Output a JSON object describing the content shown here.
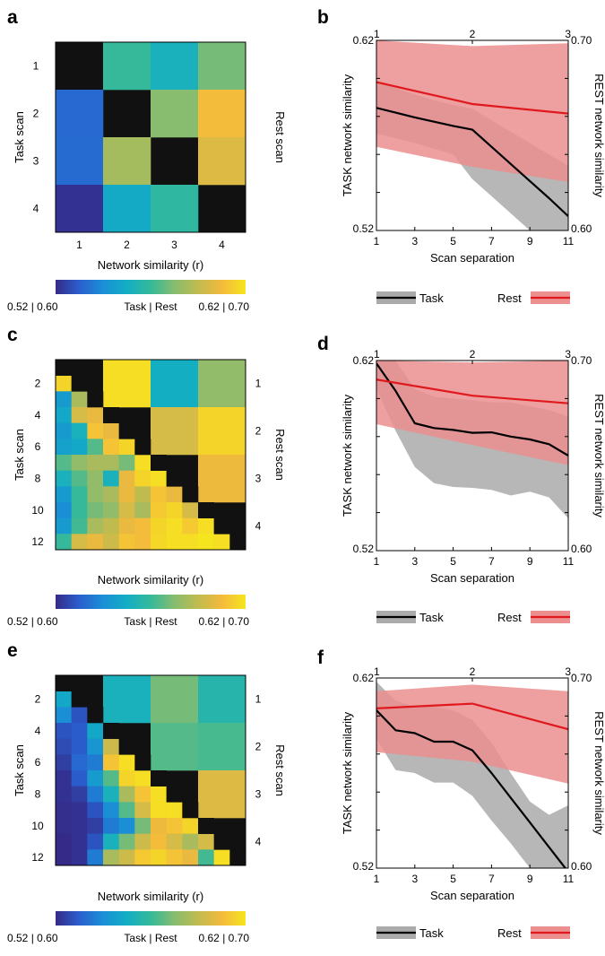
{
  "colors": {
    "task_line": "#000000",
    "task_band": "#a9aaa9",
    "rest_line": "#e0191f",
    "rest_band": "#eb8f8f",
    "diagonal": "#111111",
    "colormap": [
      "#352a87",
      "#2a5fce",
      "#1a8fd6",
      "#13aec4",
      "#35b99a",
      "#86bc6f",
      "#c0bb4f",
      "#f4ba3c",
      "#f5e51e"
    ]
  },
  "chart_data": [
    {
      "panel": "a",
      "type": "heatmap",
      "ylabel_left": "Task scan",
      "ylabel_right": "Rest scan",
      "xlabel": "Network similarity (r)",
      "x_ticks": [
        "1",
        "2",
        "3",
        "4"
      ],
      "y_ticks_left": [
        "1",
        "2",
        "3",
        "4"
      ],
      "task_scans": 4,
      "rest_scans": 4,
      "task_range": [
        0.52,
        0.62
      ],
      "rest_range": [
        0.6,
        0.7
      ],
      "matrix": [
        [
          null,
          0.65,
          0.64,
          0.66
        ],
        [
          0.535,
          null,
          0.663,
          0.688
        ],
        [
          0.536,
          0.589,
          null,
          0.682
        ],
        [
          0.522,
          0.556,
          0.568,
          null
        ]
      ],
      "colorbar": {
        "left": "0.52 | 0.60",
        "mid": "Task | Rest",
        "right": "0.62 | 0.70"
      }
    },
    {
      "panel": "b",
      "type": "line",
      "xlabel": "Scan separation",
      "ylabel_left": "TASK network similarity",
      "ylabel_right": "REST network similarity",
      "x_ticks": [
        "1",
        "3",
        "5",
        "7",
        "9",
        "11"
      ],
      "top_ticks": [
        "1",
        "2",
        "3"
      ],
      "ylim_left": [
        0.52,
        0.62
      ],
      "ylim_right": [
        0.6,
        0.7
      ],
      "y_tick_labels_left": [
        "0.52",
        "0.62"
      ],
      "y_tick_labels_right": [
        "0.60",
        "0.70"
      ],
      "series": [
        {
          "name": "Task",
          "axis": "bottom-left",
          "x": [
            1,
            2,
            3,
            4,
            5,
            6,
            7,
            8,
            9,
            10,
            11
          ],
          "values": [
            0.5845,
            0.582,
            0.5795,
            0.5772,
            0.575,
            0.573,
            0.564,
            0.555,
            0.546,
            0.537,
            0.5275
          ],
          "lower": [
            0.571,
            0.5685,
            0.566,
            0.563,
            0.56,
            0.547,
            0.538,
            0.529,
            0.52,
            0.518,
            0.518
          ],
          "upper": [
            0.5975,
            0.595,
            0.5915,
            0.5885,
            0.586,
            0.584,
            0.578,
            0.572,
            0.566,
            0.56,
            0.554
          ]
        },
        {
          "name": "Rest",
          "axis": "top-right",
          "x": [
            1,
            2,
            3
          ],
          "values": [
            0.678,
            0.6665,
            0.6615
          ],
          "lower": [
            0.644,
            0.6335,
            0.6255
          ],
          "upper": [
            0.7,
            0.697,
            0.6985
          ]
        }
      ],
      "legend": [
        "Task",
        "Rest"
      ]
    },
    {
      "panel": "c",
      "type": "heatmap",
      "ylabel_left": "Task scan",
      "ylabel_right": "Rest scan",
      "xlabel": "Network similarity (r)",
      "y_ticks_left": [
        "2",
        "4",
        "6",
        "8",
        "10",
        "12"
      ],
      "y_ticks_right": [
        "1",
        "2",
        "3",
        "4"
      ],
      "task_scans": 12,
      "rest_scans": 4,
      "task_range": [
        0.52,
        0.62
      ],
      "rest_range": [
        0.6,
        0.7
      ],
      "task_lower": [
        [
          0.615
        ],
        [
          0.55,
          0.59
        ],
        [
          0.555,
          0.6,
          0.605
        ],
        [
          0.55,
          0.56,
          0.61,
          0.605
        ],
        [
          0.552,
          0.555,
          0.575,
          0.61,
          0.615
        ],
        [
          0.575,
          0.585,
          0.59,
          0.59,
          0.58,
          0.618
        ],
        [
          0.56,
          0.575,
          0.585,
          0.56,
          0.605,
          0.615,
          0.618
        ],
        [
          0.55,
          0.57,
          0.585,
          0.59,
          0.605,
          0.595,
          0.61,
          0.605
        ],
        [
          0.545,
          0.57,
          0.58,
          0.585,
          0.6,
          0.59,
          0.612,
          0.615,
          0.6
        ],
        [
          0.55,
          0.572,
          0.59,
          0.595,
          0.605,
          0.608,
          0.615,
          0.618,
          0.612,
          0.618
        ],
        [
          0.57,
          0.6,
          0.605,
          0.598,
          0.61,
          0.608,
          0.616,
          0.618,
          0.618,
          0.62,
          0.618
        ]
      ],
      "rest_upper": [
        [
          0.698,
          0.638,
          0.665
        ],
        [
          0.68,
          0.695
        ],
        [
          0.686
        ]
      ],
      "colorbar": {
        "left": "0.52 | 0.60",
        "mid": "Task | Rest",
        "right": "0.62 | 0.70"
      }
    },
    {
      "panel": "d",
      "type": "line",
      "xlabel": "Scan separation",
      "ylabel_left": "TASK network similarity",
      "ylabel_right": "REST network similarity",
      "x_ticks": [
        "1",
        "3",
        "5",
        "7",
        "9",
        "11"
      ],
      "top_ticks": [
        "1",
        "2",
        "3"
      ],
      "ylim_left": [
        0.52,
        0.62
      ],
      "ylim_right": [
        0.6,
        0.7
      ],
      "y_tick_labels_left": [
        "0.52",
        "0.62"
      ],
      "y_tick_labels_right": [
        "0.60",
        "0.70"
      ],
      "series": [
        {
          "name": "Task",
          "axis": "bottom-left",
          "x": [
            1,
            2,
            3,
            4,
            5,
            6,
            7,
            8,
            9,
            10,
            11
          ],
          "values": [
            0.6185,
            0.604,
            0.587,
            0.5845,
            0.5835,
            0.582,
            0.5822,
            0.58,
            0.5785,
            0.576,
            0.57
          ],
          "lower": [
            0.605,
            0.583,
            0.564,
            0.5555,
            0.5535,
            0.553,
            0.552,
            0.549,
            0.551,
            0.548,
            0.537
          ],
          "upper": [
            0.62,
            0.62,
            0.605,
            0.601,
            0.6,
            0.599,
            0.598,
            0.598,
            0.596,
            0.594,
            0.5905
          ]
        },
        {
          "name": "Rest",
          "axis": "top-right",
          "x": [
            1,
            2,
            3
          ],
          "values": [
            0.69,
            0.6815,
            0.6775
          ],
          "lower": [
            0.6665,
            0.6555,
            0.645
          ],
          "upper": [
            0.7,
            0.699,
            0.7
          ]
        }
      ],
      "legend": [
        "Task",
        "Rest"
      ]
    },
    {
      "panel": "e",
      "type": "heatmap",
      "ylabel_left": "Task scan",
      "ylabel_right": "Rest scan",
      "xlabel": "Network similarity (r)",
      "y_ticks_left": [
        "2",
        "4",
        "6",
        "8",
        "10",
        "12"
      ],
      "y_ticks_right": [
        "1",
        "2",
        "3",
        "4"
      ],
      "task_scans": 12,
      "rest_scans": 4,
      "task_range": [
        0.52,
        0.62
      ],
      "rest_range": [
        0.6,
        0.7
      ],
      "task_lower": [
        [
          0.555
        ],
        [
          0.545,
          0.53
        ],
        [
          0.53,
          0.532,
          0.555
        ],
        [
          0.528,
          0.532,
          0.548,
          0.598
        ],
        [
          0.525,
          0.535,
          0.54,
          0.61,
          0.618
        ],
        [
          0.522,
          0.532,
          0.55,
          0.575,
          0.615,
          0.618
        ],
        [
          0.522,
          0.525,
          0.54,
          0.56,
          0.59,
          0.61,
          0.618
        ],
        [
          0.521,
          0.522,
          0.53,
          0.545,
          0.575,
          0.6,
          0.618,
          0.618
        ],
        [
          0.521,
          0.522,
          0.525,
          0.54,
          0.545,
          0.58,
          0.606,
          0.61,
          0.615
        ],
        [
          0.52,
          0.522,
          0.53,
          0.56,
          0.58,
          0.598,
          0.608,
          0.6,
          0.59,
          0.6
        ],
        [
          0.52,
          0.522,
          0.54,
          0.59,
          0.598,
          0.612,
          0.615,
          0.61,
          0.605,
          0.572,
          0.618
        ]
      ],
      "rest_upper": [
        [
          0.64,
          0.66,
          0.645
        ],
        [
          0.655,
          0.653
        ],
        [
          0.682
        ]
      ],
      "colorbar": {
        "left": "0.52 | 0.60",
        "mid": "Task | Rest",
        "right": "0.62 | 0.70"
      }
    },
    {
      "panel": "f",
      "type": "line",
      "xlabel": "Scan separation",
      "ylabel_left": "TASK network similarity",
      "ylabel_right": "REST network similarity",
      "x_ticks": [
        "1",
        "3",
        "5",
        "7",
        "9",
        "11"
      ],
      "top_ticks": [
        "1",
        "2",
        "3"
      ],
      "ylim_left": [
        0.52,
        0.62
      ],
      "ylim_right": [
        0.6,
        0.7
      ],
      "y_tick_labels_left": [
        "0.52",
        "0.62"
      ],
      "y_tick_labels_right": [
        "0.60",
        "0.70"
      ],
      "series": [
        {
          "name": "Task",
          "axis": "bottom-left",
          "x": [
            1,
            2,
            3,
            4,
            5,
            6,
            7,
            8,
            9,
            10,
            11
          ],
          "values": [
            0.603,
            0.5925,
            0.591,
            0.5865,
            0.5865,
            0.582,
            0.57,
            0.557,
            0.544,
            0.531,
            0.518
          ],
          "lower": [
            0.588,
            0.5715,
            0.57,
            0.565,
            0.565,
            0.558,
            0.545,
            0.533,
            0.52,
            0.52,
            0.52
          ],
          "upper": [
            0.618,
            0.608,
            0.605,
            0.605,
            0.603,
            0.598,
            0.586,
            0.57,
            0.555,
            0.548,
            0.553
          ]
        },
        {
          "name": "Rest",
          "axis": "top-right",
          "x": [
            1,
            2,
            3
          ],
          "values": [
            0.684,
            0.6865,
            0.673
          ],
          "lower": [
            0.661,
            0.656,
            0.6445
          ],
          "upper": [
            0.693,
            0.6965,
            0.693
          ]
        }
      ],
      "legend": [
        "Task",
        "Rest"
      ]
    }
  ]
}
